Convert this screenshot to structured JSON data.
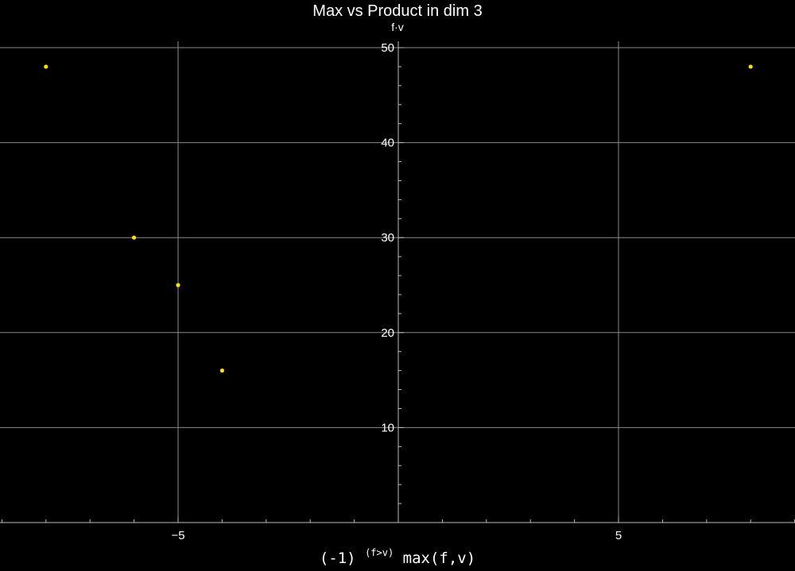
{
  "chart_data": {
    "type": "scatter",
    "title": "Max vs Product in dim 3",
    "ylabel": "f·v",
    "xlabel_parts": {
      "base": "(-1)",
      "exponent": "(f>v)",
      "rest": "max(f,v)"
    },
    "xlim": [
      -9,
      9
    ],
    "ylim": [
      0,
      50
    ],
    "x_ticks_major": [
      -5,
      5
    ],
    "x_tick_labels": [
      "−5",
      "5"
    ],
    "y_ticks_major": [
      10,
      20,
      30,
      40,
      50
    ],
    "y_tick_labels": [
      "10",
      "20",
      "30",
      "40",
      "50"
    ],
    "grid": true,
    "point_color": "#FFE100",
    "points": [
      {
        "x": -8,
        "y": 48
      },
      {
        "x": -6,
        "y": 30
      },
      {
        "x": -5,
        "y": 25
      },
      {
        "x": -4,
        "y": 16
      },
      {
        "x": 8,
        "y": 48
      }
    ]
  }
}
